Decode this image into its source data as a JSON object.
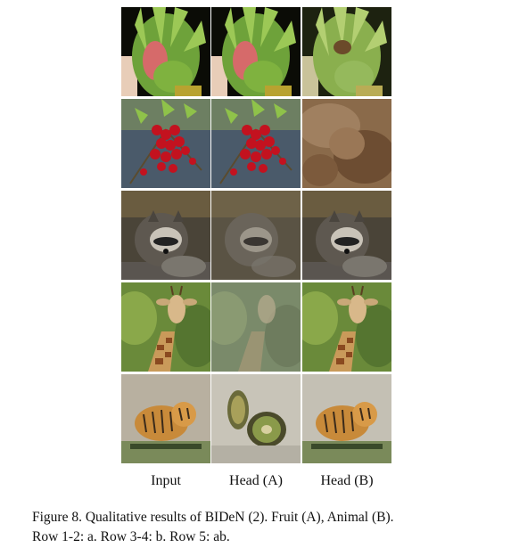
{
  "columns": [
    "Input",
    "Head (A)",
    "Head (B)"
  ],
  "caption": {
    "line1": "Figure 8. Qualitative results of BIDeN (2). Fruit (A), Animal (B).",
    "line2": "Row 1-2: a. Row 3-4: b. Row 5: ab."
  },
  "rows": [
    {
      "subject": "dragon-fruit",
      "degradation": "a"
    },
    {
      "subject": "red-currants",
      "degradation": "a"
    },
    {
      "subject": "raccoon",
      "degradation": "b"
    },
    {
      "subject": "giraffe",
      "degradation": "b"
    },
    {
      "subject": "tiger",
      "degradation": "ab"
    }
  ]
}
